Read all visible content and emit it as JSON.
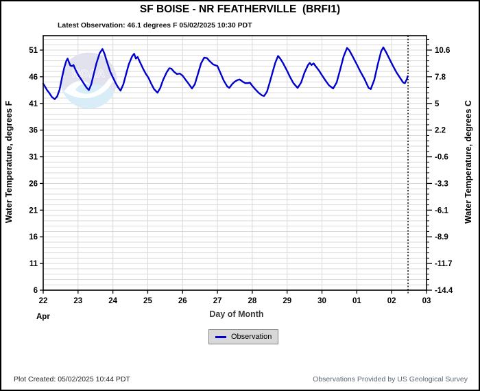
{
  "header": {
    "title": "SF BOISE - NR FEATHERVILLE  (BRFI1)",
    "latest_observation": "Latest Observation: 46.1 degrees F 05/02/2025 10:30 PDT"
  },
  "legend": {
    "label": "Observation"
  },
  "watermark": {
    "text": "NOAA"
  },
  "footer": {
    "plot_created": "Plot Created: 05/02/2025 10:44 PDT",
    "provider": "Observations Provided by US Geological Survey"
  },
  "colors": {
    "line": "#0000cd",
    "grid": "#d9d9d9",
    "axis": "#000000",
    "legend_bg": "#d8d8d8",
    "watermark_lavender": "#e2e2ef",
    "watermark_cyan": "#d8edf8",
    "provider_text": "#5c6670"
  },
  "chart_data": {
    "type": "line",
    "title": "SF BOISE - NR FEATHERVILLE  (BRFI1)",
    "xlabel": "Day of Month",
    "x_month_label": "Apr",
    "ylabel_left": "Water Temperature, degrees F",
    "ylabel_right": "Water Temperature, degrees C",
    "x_tick_labels": [
      "22",
      "23",
      "24",
      "25",
      "26",
      "27",
      "28",
      "29",
      "30",
      "01",
      "02",
      "03"
    ],
    "y_ticks_f": [
      6,
      11,
      16,
      21,
      26,
      31,
      36,
      41,
      46,
      51
    ],
    "y_tick_labels_c": [
      "-14.4",
      "-11.7",
      "-8.9",
      "-6.1",
      "-3.3",
      "-0.6",
      "2.2",
      "5",
      "7.8",
      "10.6"
    ],
    "xlim_days": [
      0,
      11
    ],
    "ylim_f": [
      6,
      53.7
    ],
    "grid": true,
    "now_line_day": 10.47,
    "legend_position": "bottom-center",
    "series": [
      {
        "name": "Observation",
        "color": "#0000cd",
        "points": [
          [
            0.0,
            44.7
          ],
          [
            0.05,
            44.2
          ],
          [
            0.1,
            43.6
          ],
          [
            0.17,
            43.0
          ],
          [
            0.25,
            42.2
          ],
          [
            0.33,
            41.8
          ],
          [
            0.4,
            42.3
          ],
          [
            0.47,
            43.6
          ],
          [
            0.54,
            45.8
          ],
          [
            0.6,
            47.6
          ],
          [
            0.66,
            48.9
          ],
          [
            0.7,
            49.4
          ],
          [
            0.74,
            48.7
          ],
          [
            0.78,
            48.1
          ],
          [
            0.83,
            48.0
          ],
          [
            0.87,
            48.2
          ],
          [
            0.92,
            47.4
          ],
          [
            1.0,
            46.4
          ],
          [
            1.08,
            45.6
          ],
          [
            1.16,
            44.8
          ],
          [
            1.24,
            44.0
          ],
          [
            1.31,
            43.5
          ],
          [
            1.38,
            44.6
          ],
          [
            1.45,
            46.5
          ],
          [
            1.53,
            48.6
          ],
          [
            1.62,
            50.4
          ],
          [
            1.7,
            51.2
          ],
          [
            1.76,
            50.3
          ],
          [
            1.83,
            48.8
          ],
          [
            1.92,
            47.0
          ],
          [
            2.0,
            45.9
          ],
          [
            2.08,
            44.8
          ],
          [
            2.15,
            44.0
          ],
          [
            2.22,
            43.4
          ],
          [
            2.3,
            44.6
          ],
          [
            2.38,
            46.5
          ],
          [
            2.46,
            48.4
          ],
          [
            2.55,
            49.8
          ],
          [
            2.61,
            50.3
          ],
          [
            2.66,
            49.4
          ],
          [
            2.71,
            49.7
          ],
          [
            2.78,
            48.7
          ],
          [
            2.86,
            47.6
          ],
          [
            2.94,
            46.6
          ],
          [
            3.02,
            45.8
          ],
          [
            3.1,
            44.7
          ],
          [
            3.18,
            43.7
          ],
          [
            3.28,
            43.0
          ],
          [
            3.36,
            43.9
          ],
          [
            3.44,
            45.4
          ],
          [
            3.54,
            46.8
          ],
          [
            3.62,
            47.6
          ],
          [
            3.68,
            47.5
          ],
          [
            3.76,
            46.9
          ],
          [
            3.84,
            46.5
          ],
          [
            3.92,
            46.6
          ],
          [
            4.0,
            46.2
          ],
          [
            4.08,
            45.5
          ],
          [
            4.16,
            44.8
          ],
          [
            4.27,
            43.8
          ],
          [
            4.35,
            44.6
          ],
          [
            4.44,
            46.5
          ],
          [
            4.53,
            48.5
          ],
          [
            4.62,
            49.6
          ],
          [
            4.7,
            49.5
          ],
          [
            4.78,
            48.9
          ],
          [
            4.88,
            48.3
          ],
          [
            5.0,
            48.0
          ],
          [
            5.08,
            46.8
          ],
          [
            5.18,
            45.3
          ],
          [
            5.28,
            44.2
          ],
          [
            5.34,
            43.9
          ],
          [
            5.42,
            44.6
          ],
          [
            5.5,
            45.1
          ],
          [
            5.58,
            45.4
          ],
          [
            5.64,
            45.5
          ],
          [
            5.72,
            45.1
          ],
          [
            5.8,
            44.8
          ],
          [
            5.87,
            44.8
          ],
          [
            5.93,
            44.9
          ],
          [
            6.0,
            44.3
          ],
          [
            6.08,
            43.7
          ],
          [
            6.18,
            43.0
          ],
          [
            6.28,
            42.5
          ],
          [
            6.34,
            42.4
          ],
          [
            6.42,
            43.2
          ],
          [
            6.5,
            44.9
          ],
          [
            6.58,
            46.8
          ],
          [
            6.66,
            48.6
          ],
          [
            6.74,
            49.9
          ],
          [
            6.8,
            49.4
          ],
          [
            6.88,
            48.6
          ],
          [
            7.0,
            47.1
          ],
          [
            7.08,
            46.0
          ],
          [
            7.18,
            44.8
          ],
          [
            7.3,
            43.9
          ],
          [
            7.4,
            44.9
          ],
          [
            7.5,
            46.8
          ],
          [
            7.6,
            48.2
          ],
          [
            7.65,
            48.6
          ],
          [
            7.7,
            48.2
          ],
          [
            7.76,
            48.5
          ],
          [
            7.84,
            47.8
          ],
          [
            7.92,
            47.1
          ],
          [
            8.0,
            46.3
          ],
          [
            8.1,
            45.3
          ],
          [
            8.2,
            44.4
          ],
          [
            8.32,
            43.8
          ],
          [
            8.42,
            44.9
          ],
          [
            8.52,
            47.3
          ],
          [
            8.62,
            49.8
          ],
          [
            8.72,
            51.4
          ],
          [
            8.78,
            51.0
          ],
          [
            8.88,
            49.8
          ],
          [
            9.0,
            48.3
          ],
          [
            9.1,
            47.0
          ],
          [
            9.22,
            45.6
          ],
          [
            9.34,
            43.9
          ],
          [
            9.4,
            43.7
          ],
          [
            9.5,
            45.4
          ],
          [
            9.6,
            48.3
          ],
          [
            9.7,
            50.8
          ],
          [
            9.76,
            51.5
          ],
          [
            9.84,
            50.6
          ],
          [
            9.94,
            49.3
          ],
          [
            10.04,
            48.0
          ],
          [
            10.14,
            46.8
          ],
          [
            10.24,
            45.8
          ],
          [
            10.33,
            44.9
          ],
          [
            10.38,
            44.8
          ],
          [
            10.44,
            45.6
          ],
          [
            10.46,
            46.1
          ]
        ]
      }
    ]
  }
}
